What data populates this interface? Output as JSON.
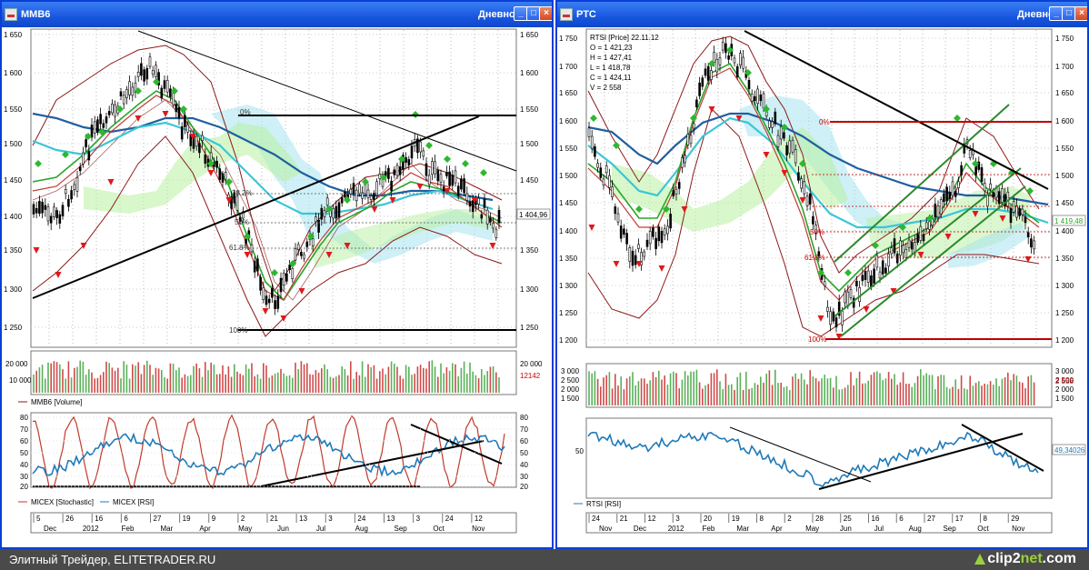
{
  "left_window": {
    "title": "MMB6",
    "mode": "Дневной",
    "price_axis": [
      "1 650",
      "1 600",
      "1 550",
      "1 500",
      "1 450",
      "1 400",
      "1 350",
      "1 300",
      "1 250"
    ],
    "last_price": "1 404,96",
    "fib_labels": [
      "0%",
      "38.2%",
      "50%",
      "61.8%",
      "100%"
    ],
    "volume_axis": [
      "20 000",
      "10 000"
    ],
    "volume_last": "12142",
    "volume_legend": "MMB6 [Volume]",
    "osc_axis": [
      "80",
      "70",
      "60",
      "50",
      "40",
      "30",
      "20"
    ],
    "legend_stoch": "MICEX [Stochastic]",
    "legend_rsi": "MICEX [RSI]",
    "date_days": [
      "5",
      "26",
      "16",
      "6",
      "27",
      "19",
      "9",
      "2",
      "21",
      "13",
      "3",
      "24",
      "13",
      "3",
      "24",
      "12"
    ],
    "date_months": [
      "Dec",
      "2012",
      "Feb",
      "Mar",
      "Apr",
      "May",
      "Jun",
      "Jul",
      "Aug",
      "Sep",
      "Oct",
      "Nov"
    ]
  },
  "right_window": {
    "title": "РТС",
    "mode": "Дневной",
    "info": [
      "RTSI [Price] 22.11.12",
      "O = 1 421,23",
      "H = 1 427,41",
      "L = 1 418,78",
      "C = 1 424,11",
      "V = 2 558"
    ],
    "price_axis": [
      "1 750",
      "1 700",
      "1 650",
      "1 600",
      "1 550",
      "1 500",
      "1 450",
      "1 400",
      "1 350",
      "1 300",
      "1 250",
      "1 200"
    ],
    "last_price": "1 419,48",
    "fib_labels": [
      "0%",
      "50%",
      "61.8%",
      "100%"
    ],
    "volume_axis": [
      "3 000",
      "2 500",
      "2 000",
      "1 500"
    ],
    "volume_last": "2 558",
    "osc_axis": [
      "50"
    ],
    "rsi_last": "49,34026",
    "legend_rsi": "RTSI [RSI]",
    "date_days": [
      "24",
      "21",
      "12",
      "3",
      "20",
      "19",
      "8",
      "2",
      "28",
      "25",
      "16",
      "6",
      "27",
      "17",
      "8",
      "29"
    ],
    "date_months": [
      "Nov",
      "Dec",
      "2012",
      "Feb",
      "Mar",
      "Apr",
      "May",
      "Jun",
      "Jul",
      "Aug",
      "Sep",
      "Oct",
      "Nov"
    ]
  },
  "footer": {
    "text": "Элитный Трейдер, ELITETRADER.RU",
    "brand_a": "clip2",
    "brand_b": "net",
    "brand_c": ".com"
  },
  "colors": {
    "title_blue": "#1856e0",
    "price_line": "#000000",
    "ma_blue": "#1f5fa0",
    "ma_cyan": "#3bc6d8",
    "bull": "#2db82d",
    "bear": "#e0191c",
    "fib_red": "#c00000"
  }
}
